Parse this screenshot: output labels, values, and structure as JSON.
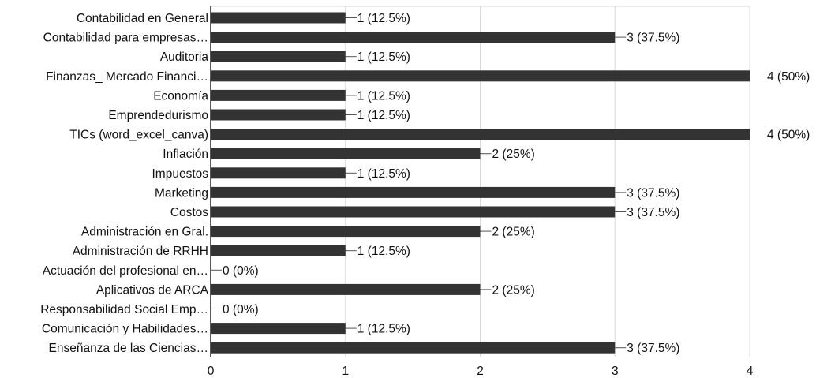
{
  "chart_data": {
    "type": "bar",
    "orientation": "horizontal",
    "categories": [
      "Contabilidad en General",
      "Contabilidad para empresas…",
      "Auditoria",
      "Finanzas_ Mercado Financi…",
      "Economía",
      "Emprendedurismo",
      "TICs (word_excel_canva)",
      "Inflación",
      "Impuestos",
      "Marketing",
      "Costos",
      "Administración en Gral.",
      "Administración de RRHH",
      "Actuación del profesional en…",
      "Aplicativos de ARCA",
      "Responsabilidad Social Emp…",
      "Comunicación y Habilidades…",
      "Enseñanza de las Ciencias…"
    ],
    "values": [
      1,
      3,
      1,
      4,
      1,
      1,
      4,
      2,
      1,
      3,
      3,
      2,
      1,
      0,
      2,
      0,
      1,
      3
    ],
    "data_labels": [
      "1 (12.5%)",
      "3 (37.5%)",
      "1 (12.5%)",
      "4 (50%)",
      "1 (12.5%)",
      "1 (12.5%)",
      "4 (50%)",
      "2 (25%)",
      "1 (12.5%)",
      "3 (37.5%)",
      "3 (37.5%)",
      "2 (25%)",
      "1 (12.5%)",
      "0 (0%)",
      "2 (25%)",
      "0 (0%)",
      "1 (12.5%)",
      "3 (37.5%)"
    ],
    "xlim": [
      0,
      4
    ],
    "xticks": [
      "0",
      "1",
      "2",
      "3",
      "4"
    ],
    "grid": true,
    "bar_color": "#333333",
    "grid_color": "#d8d8d8",
    "title": "",
    "xlabel": "",
    "ylabel": ""
  }
}
